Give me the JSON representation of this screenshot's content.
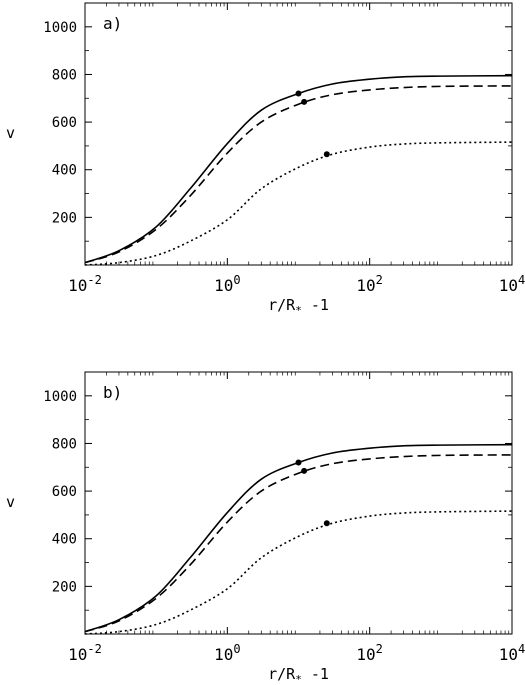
{
  "chart_data": [
    {
      "type": "line",
      "panel_label": "a)",
      "xlabel": "r/R",
      "xlabel_sub": "*",
      "xlabel_tail": " -1",
      "ylabel": "v",
      "xscale": "log",
      "xlim": [
        0.01,
        10000
      ],
      "ylim": [
        0,
        1100
      ],
      "xticks": [
        {
          "value": 0.01,
          "base": "10",
          "exp": "-2"
        },
        {
          "value": 1,
          "base": "10",
          "exp": "0"
        },
        {
          "value": 100,
          "base": "10",
          "exp": "2"
        },
        {
          "value": 10000,
          "base": "10",
          "exp": "4"
        }
      ],
      "yticks": [
        200,
        400,
        600,
        800,
        1000
      ],
      "grid": false,
      "series": [
        {
          "style": "solid",
          "x": [
            0.01,
            0.03,
            0.1,
            0.3,
            1,
            3,
            10,
            30,
            100,
            300,
            1000,
            10000
          ],
          "y": [
            10,
            60,
            160,
            320,
            510,
            650,
            720,
            760,
            780,
            790,
            793,
            795
          ],
          "marker": {
            "x": 10,
            "y": 720
          }
        },
        {
          "style": "dashed",
          "x": [
            0.01,
            0.03,
            0.1,
            0.3,
            1,
            3,
            10,
            30,
            100,
            300,
            1000,
            10000
          ],
          "y": [
            10,
            55,
            150,
            290,
            470,
            600,
            675,
            715,
            735,
            745,
            750,
            752
          ],
          "marker": {
            "x": 12,
            "y": 685
          }
        },
        {
          "style": "dotted",
          "x": [
            0.01,
            0.03,
            0.1,
            0.3,
            1,
            3,
            10,
            30,
            100,
            300,
            1000,
            10000
          ],
          "y": [
            0,
            10,
            40,
            100,
            190,
            320,
            410,
            465,
            495,
            508,
            513,
            516
          ],
          "marker": {
            "x": 25,
            "y": 465
          }
        }
      ]
    },
    {
      "type": "line",
      "panel_label": "b)",
      "xlabel": "r/R",
      "xlabel_sub": "*",
      "xlabel_tail": " -1",
      "ylabel": "v",
      "xscale": "log",
      "xlim": [
        0.01,
        10000
      ],
      "ylim": [
        0,
        1100
      ],
      "xticks": [
        {
          "value": 0.01,
          "base": "10",
          "exp": "-2"
        },
        {
          "value": 1,
          "base": "10",
          "exp": "0"
        },
        {
          "value": 100,
          "base": "10",
          "exp": "2"
        },
        {
          "value": 10000,
          "base": "10",
          "exp": "4"
        }
      ],
      "yticks": [
        200,
        400,
        600,
        800,
        1000
      ],
      "grid": false,
      "series": [
        {
          "style": "solid",
          "x": [
            0.01,
            0.03,
            0.1,
            0.3,
            1,
            3,
            10,
            30,
            100,
            300,
            1000,
            10000
          ],
          "y": [
            10,
            60,
            160,
            320,
            510,
            650,
            720,
            760,
            780,
            790,
            793,
            795
          ],
          "marker": {
            "x": 10,
            "y": 720
          }
        },
        {
          "style": "dashed",
          "x": [
            0.01,
            0.03,
            0.1,
            0.3,
            1,
            3,
            10,
            30,
            100,
            300,
            1000,
            10000
          ],
          "y": [
            10,
            55,
            150,
            290,
            470,
            600,
            675,
            715,
            735,
            745,
            750,
            752
          ],
          "marker": {
            "x": 12,
            "y": 685
          }
        },
        {
          "style": "dotted",
          "x": [
            0.01,
            0.03,
            0.1,
            0.3,
            1,
            3,
            10,
            30,
            100,
            300,
            1000,
            10000
          ],
          "y": [
            0,
            10,
            40,
            100,
            190,
            320,
            410,
            465,
            495,
            508,
            513,
            516
          ],
          "marker": {
            "x": 25,
            "y": 465
          }
        }
      ]
    }
  ]
}
